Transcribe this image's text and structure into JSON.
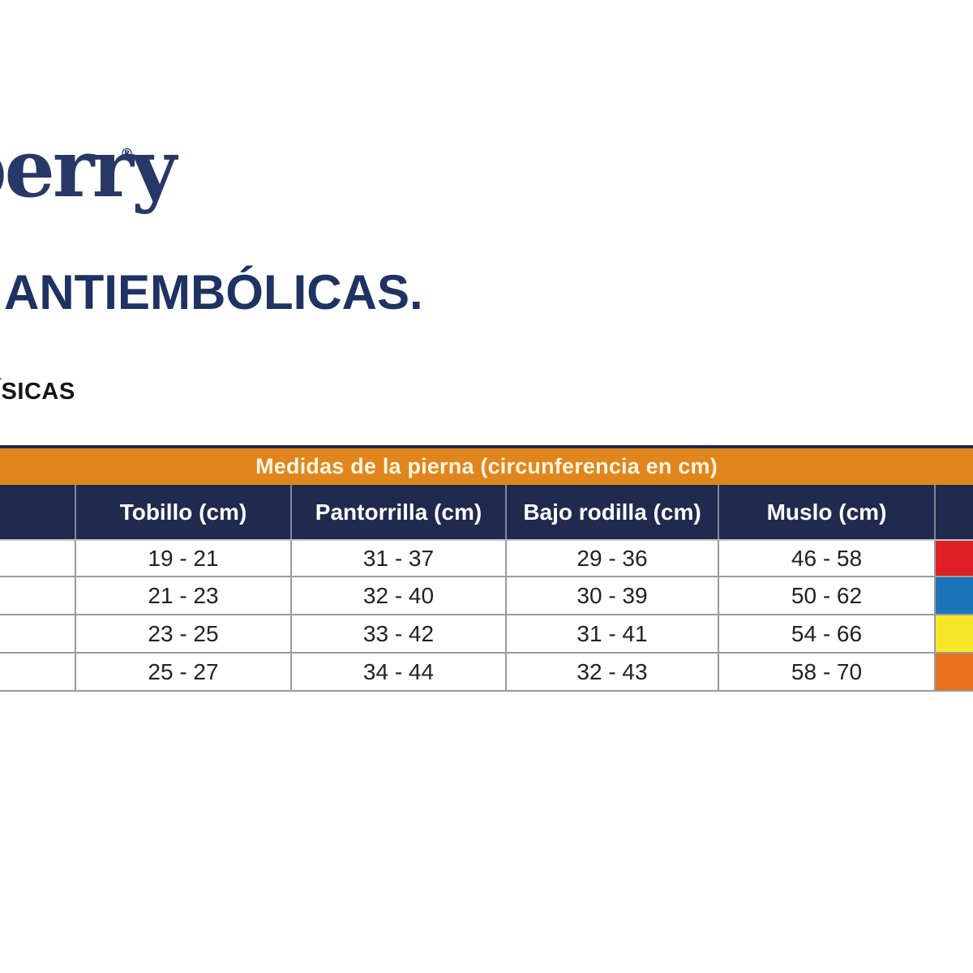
{
  "brand": {
    "logo_text": "berry",
    "trademark": "®",
    "logo_color": "#283866"
  },
  "heading": {
    "title": "ANTIEMBÓLICAS.",
    "subtitle": "ÍSICAS"
  },
  "table": {
    "banner_title": "Medidas de la pierna (circunferencia en cm)",
    "columns": [
      "",
      "Tobillo (cm)",
      "Pantorrilla (cm)",
      "Bajo rodilla (cm)",
      "Muslo (cm)"
    ],
    "rows": [
      {
        "size_label": "",
        "tobillo": "19 - 21",
        "pantorrilla": "31 - 37",
        "bajo_rodilla": "29 - 36",
        "muslo": "46 - 58",
        "swatch_color": "#DE2024",
        "swatch_name": "red"
      },
      {
        "size_label": "",
        "tobillo": "21 - 23",
        "pantorrilla": "32 - 40",
        "bajo_rodilla": "30 - 39",
        "muslo": "50 - 62",
        "swatch_color": "#1C73B9",
        "swatch_name": "blue"
      },
      {
        "size_label": "",
        "tobillo": "23 - 25",
        "pantorrilla": "33 - 42",
        "bajo_rodilla": "31 - 41",
        "muslo": "54 - 66",
        "swatch_color": "#F6E829",
        "swatch_name": "yellow"
      },
      {
        "size_label": "",
        "tobillo": "25 - 27",
        "pantorrilla": "34 - 44",
        "bajo_rodilla": "32 - 43",
        "muslo": "58 - 70",
        "swatch_color": "#E7711B",
        "swatch_name": "orange"
      }
    ]
  },
  "colors": {
    "banner_orange": "#E0861C",
    "header_navy": "#1F2A4E",
    "title_navy": "#1E3263",
    "banner_text": "#FCF4E2",
    "swatch_red": "#DE2024",
    "swatch_blue": "#1C73B9",
    "swatch_yellow": "#F6E829",
    "swatch_orange": "#E7711B"
  }
}
